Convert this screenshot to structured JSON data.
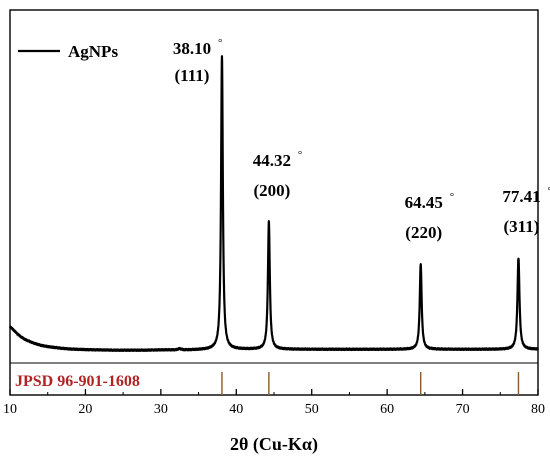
{
  "chart_data": {
    "type": "line",
    "title": "",
    "xlabel": "2θ (Cu-Kα)",
    "ylabel": "",
    "xlim": [
      10,
      80
    ],
    "ylim": [
      0,
      1
    ],
    "xticks": [
      10,
      20,
      30,
      40,
      50,
      60,
      70,
      80
    ],
    "grid": false,
    "legend": {
      "position": "top-left",
      "entries": [
        "AgNPs"
      ]
    },
    "series": [
      {
        "name": "AgNPs",
        "color": "#000000",
        "baseline": [
          [
            10.0,
            0.095
          ],
          [
            10.5,
            0.083
          ],
          [
            11.0,
            0.07
          ],
          [
            11.5,
            0.06
          ],
          [
            12.0,
            0.052
          ],
          [
            13.0,
            0.041
          ],
          [
            14.0,
            0.033
          ],
          [
            15.0,
            0.028
          ],
          [
            16.0,
            0.025
          ],
          [
            17.0,
            0.022
          ],
          [
            18.0,
            0.02
          ],
          [
            20.0,
            0.018
          ],
          [
            22.0,
            0.017
          ],
          [
            24.0,
            0.016
          ],
          [
            26.0,
            0.016
          ],
          [
            28.0,
            0.016
          ],
          [
            30.0,
            0.017
          ],
          [
            32.0,
            0.017
          ],
          [
            32.5,
            0.021
          ],
          [
            33.0,
            0.017
          ],
          [
            34.0,
            0.017
          ],
          [
            36.0,
            0.018
          ],
          [
            37.0,
            0.019
          ],
          [
            80.0,
            0.019
          ]
        ],
        "peaks": [
          {
            "position": 38.1,
            "height": 1.0,
            "width": 0.28
          },
          {
            "position": 44.32,
            "height": 0.445,
            "width": 0.3
          },
          {
            "position": 64.45,
            "height": 0.305,
            "width": 0.3
          },
          {
            "position": 77.41,
            "height": 0.325,
            "width": 0.32
          }
        ]
      }
    ],
    "annotations": [
      {
        "x": 38.1,
        "angle": "38.10",
        "hkl": "(111)"
      },
      {
        "x": 44.32,
        "angle": "44.32",
        "hkl": "(200)"
      },
      {
        "x": 64.45,
        "angle": "64.45",
        "hkl": "(220)"
      },
      {
        "x": 77.41,
        "angle": "77.41",
        "hkl": "(311)"
      }
    ],
    "reference": {
      "label": "JPSD 96-901-1608",
      "color": "#b22222",
      "positions": [
        38.1,
        44.32,
        64.45,
        77.41
      ]
    }
  }
}
